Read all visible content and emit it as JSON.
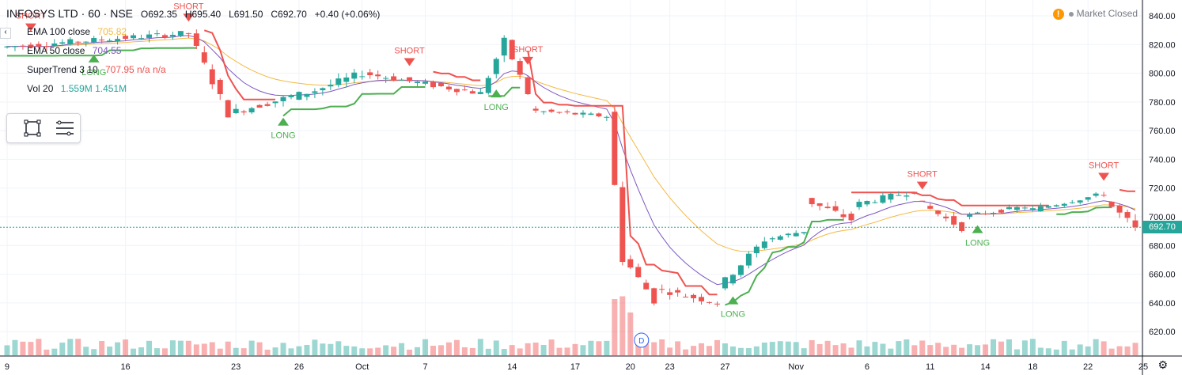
{
  "header": {
    "symbol": "INFOSYS LTD · 60 · NSE",
    "open": "O692.35",
    "high": "H695.40",
    "low": "L691.50",
    "close": "C692.70",
    "change": "+0.40 (+0.06%)"
  },
  "indicators": [
    {
      "name": "EMA 100 close",
      "value": "705.82",
      "color": "#f5b942"
    },
    {
      "name": "EMA 50 close",
      "value": "704.55",
      "color": "#7e57c2"
    },
    {
      "name": "SuperTrend 3 10",
      "value": "707.95  n/a  n/a",
      "color": "#ef5350"
    },
    {
      "name": "Vol 20",
      "value": "1.559M  1.451M",
      "color": "#26a69a"
    }
  ],
  "status": {
    "market": "Market Closed",
    "warn": "!"
  },
  "last_price": "692.70",
  "colors": {
    "up": "#26a69a",
    "down": "#ef5350",
    "ema100": "#f5b942",
    "ema50": "#7e57c2",
    "st_up": "#4caf50",
    "st_down": "#ef5350"
  },
  "event_marker": "D",
  "chart_data": {
    "type": "candlestick",
    "y_axis": {
      "ticks": [
        620,
        640,
        660,
        680,
        700,
        720,
        740,
        760,
        780,
        800,
        820,
        840
      ],
      "range": [
        603,
        851
      ]
    },
    "x_axis": {
      "labels": [
        "9",
        "16",
        "23",
        "26",
        "Oct",
        "7",
        "14",
        "17",
        "20",
        "23",
        "27",
        "Nov",
        "6",
        "11",
        "14",
        "18",
        "22",
        "25"
      ],
      "label_positions": [
        0,
        15,
        29,
        37,
        45,
        53,
        64,
        72,
        79,
        84,
        91,
        100,
        109,
        117,
        124,
        130,
        137,
        144
      ],
      "bar_count": 144
    },
    "trend_segments": [
      {
        "start": 0,
        "end": 24,
        "open": 818,
        "close": 828,
        "noise": 4
      },
      {
        "start": 24,
        "end": 29,
        "open": 828,
        "close": 772,
        "noise": 6
      },
      {
        "start": 29,
        "end": 40,
        "open": 772,
        "close": 788,
        "noise": 5
      },
      {
        "start": 40,
        "end": 46,
        "open": 788,
        "close": 800,
        "noise": 5
      },
      {
        "start": 46,
        "end": 61,
        "open": 800,
        "close": 786,
        "noise": 4
      },
      {
        "start": 61,
        "end": 64,
        "open": 786,
        "close": 822,
        "noise": 6
      },
      {
        "start": 64,
        "end": 67,
        "open": 822,
        "close": 786,
        "noise": 4
      },
      {
        "start": 67,
        "end": 77,
        "open": 774,
        "close": 770,
        "noise": 3
      },
      {
        "start": 77,
        "end": 79,
        "open": 770,
        "close": 672,
        "noise": 10
      },
      {
        "start": 79,
        "end": 83,
        "open": 672,
        "close": 642,
        "noise": 6
      },
      {
        "start": 83,
        "end": 91,
        "open": 650,
        "close": 640,
        "noise": 4
      },
      {
        "start": 91,
        "end": 97,
        "open": 650,
        "close": 684,
        "noise": 5
      },
      {
        "start": 97,
        "end": 102,
        "open": 684,
        "close": 690,
        "noise": 3
      },
      {
        "start": 102,
        "end": 108,
        "open": 712,
        "close": 698,
        "noise": 5
      },
      {
        "start": 108,
        "end": 116,
        "open": 708,
        "close": 718,
        "noise": 4
      },
      {
        "start": 116,
        "end": 122,
        "open": 712,
        "close": 692,
        "noise": 4
      },
      {
        "start": 122,
        "end": 130,
        "open": 700,
        "close": 707,
        "noise": 3
      },
      {
        "start": 130,
        "end": 140,
        "open": 704,
        "close": 716,
        "noise": 3
      },
      {
        "start": 140,
        "end": 144,
        "open": 712,
        "close": 692,
        "noise": 6
      }
    ],
    "signals": [
      {
        "bar": 3,
        "type": "SHORT"
      },
      {
        "bar": 11,
        "type": "LONG"
      },
      {
        "bar": 23,
        "type": "SHORT"
      },
      {
        "bar": 35,
        "type": "LONG"
      },
      {
        "bar": 51,
        "type": "SHORT"
      },
      {
        "bar": 62,
        "type": "LONG"
      },
      {
        "bar": 66,
        "type": "SHORT"
      },
      {
        "bar": 92,
        "type": "LONG"
      },
      {
        "bar": 116,
        "type": "SHORT"
      },
      {
        "bar": 123,
        "type": "LONG"
      },
      {
        "bar": 139,
        "type": "SHORT"
      }
    ]
  }
}
